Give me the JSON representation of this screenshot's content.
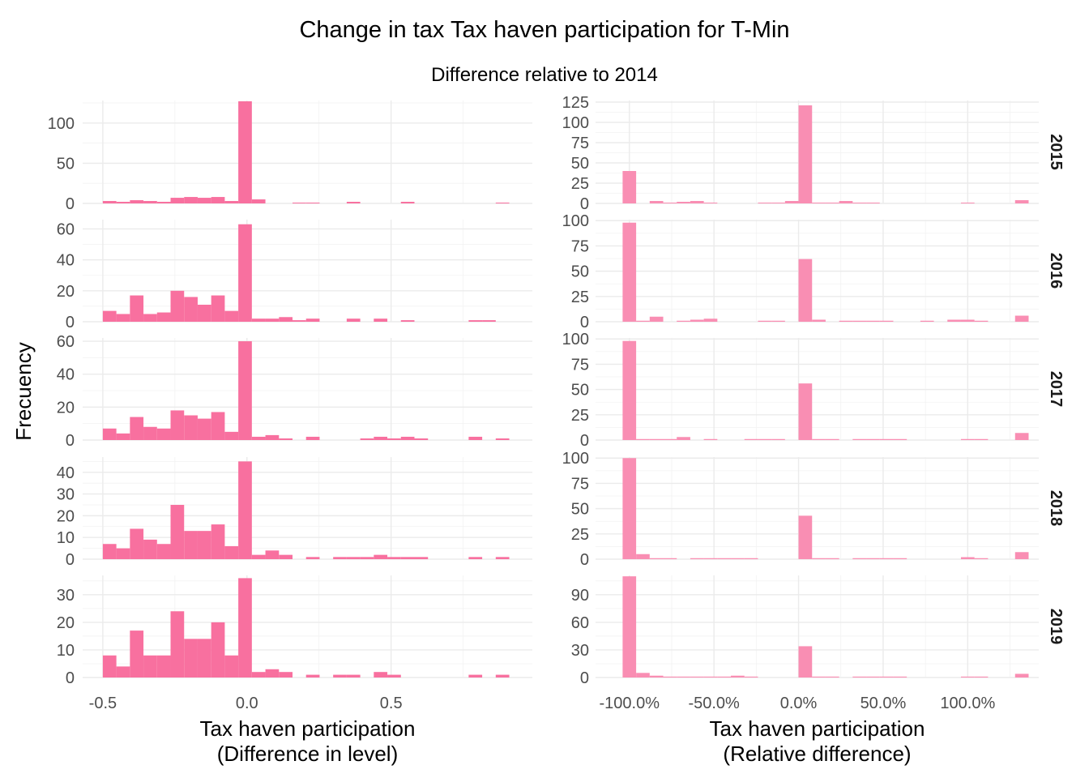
{
  "chart_data": {
    "type": "bar",
    "title": "Change in tax Tax haven participation for T-Min",
    "subtitle": "Difference relative to 2014",
    "ylabel": "Frecuency",
    "colors": {
      "level": "#f8709f",
      "relative": "#f98eb3"
    },
    "rows": [
      "2015",
      "2016",
      "2017",
      "2018",
      "2019"
    ],
    "columns": [
      {
        "key": "level",
        "xlabel_line1": "Tax haven participation",
        "xlabel_line2": "(Difference in level)",
        "xlim": [
          -0.57,
          0.99
        ],
        "x_ticks": [
          -0.5,
          0.0,
          0.5
        ],
        "x_tick_labels": [
          "-0.5",
          "0.0",
          "0.5"
        ],
        "bin_start": -0.5,
        "bin_width": 0.047,
        "panels": [
          {
            "year": "2015",
            "ylim": [
              0,
              128
            ],
            "y_ticks": [
              0,
              50,
              100
            ],
            "y_tick_labels": [
              "0",
              "50",
              "100"
            ],
            "values": [
              3,
              2,
              4,
              3,
              2,
              7,
              8,
              7,
              8,
              3,
              127,
              5,
              0,
              0,
              1,
              1,
              0,
              0,
              2,
              0,
              0,
              0,
              2,
              0,
              0,
              0,
              0,
              0,
              0,
              1
            ]
          },
          {
            "year": "2016",
            "ylim": [
              0,
              66
            ],
            "y_ticks": [
              0,
              20,
              40,
              60
            ],
            "y_tick_labels": [
              "0",
              "20",
              "40",
              "60"
            ],
            "values": [
              7,
              5,
              17,
              5,
              6,
              20,
              16,
              11,
              17,
              7,
              63,
              2,
              2,
              3,
              1,
              2,
              0,
              0,
              2,
              0,
              2,
              0,
              1,
              0,
              0,
              0,
              0,
              1,
              1,
              0
            ]
          },
          {
            "year": "2017",
            "ylim": [
              0,
              62
            ],
            "y_ticks": [
              0,
              20,
              40,
              60
            ],
            "y_tick_labels": [
              "0",
              "20",
              "40",
              "60"
            ],
            "values": [
              7,
              4,
              14,
              8,
              7,
              18,
              15,
              13,
              17,
              5,
              60,
              2,
              3,
              1,
              0,
              2,
              0,
              0,
              0,
              1,
              2,
              1,
              2,
              1,
              0,
              0,
              0,
              2,
              0,
              1
            ]
          },
          {
            "year": "2018",
            "ylim": [
              0,
              47
            ],
            "y_ticks": [
              0,
              10,
              20,
              30,
              40
            ],
            "y_tick_labels": [
              "0",
              "10",
              "20",
              "30",
              "40"
            ],
            "values": [
              7,
              5,
              14,
              9,
              7,
              25,
              13,
              13,
              16,
              6,
              45,
              2,
              4,
              2,
              0,
              1,
              0,
              1,
              1,
              1,
              2,
              1,
              1,
              1,
              0,
              0,
              0,
              1,
              0,
              1
            ]
          },
          {
            "year": "2019",
            "ylim": [
              0,
              37
            ],
            "y_ticks": [
              0,
              10,
              20,
              30
            ],
            "y_tick_labels": [
              "0",
              "10",
              "20",
              "30"
            ],
            "values": [
              8,
              4,
              17,
              8,
              8,
              24,
              14,
              14,
              20,
              8,
              36,
              2,
              3,
              2,
              0,
              1,
              0,
              1,
              1,
              0,
              2,
              1,
              0,
              0,
              0,
              0,
              0,
              1,
              0,
              1
            ]
          }
        ]
      },
      {
        "key": "relative",
        "xlabel_line1": "Tax haven participation",
        "xlabel_line2": "(Relative difference)",
        "xlim": [
          -1.2,
          1.42
        ],
        "x_ticks": [
          -1.0,
          -0.5,
          0.0,
          0.5,
          1.0
        ],
        "x_tick_labels": [
          "-100.0%",
          "-50.0%",
          "0.0%",
          "50.0%",
          "100.0%"
        ],
        "bin_start": -1.04,
        "bin_width": 0.08,
        "panels": [
          {
            "year": "2015",
            "ylim": [
              0,
              127
            ],
            "y_ticks": [
              0,
              25,
              50,
              75,
              100,
              125
            ],
            "y_tick_labels": [
              "0",
              "25",
              "50",
              "75",
              "100",
              "125"
            ],
            "values": [
              40,
              0,
              3,
              1,
              2,
              3,
              1,
              0,
              0,
              0,
              1,
              1,
              3,
              121,
              1,
              1,
              3,
              1,
              1,
              0,
              0,
              0,
              0,
              0,
              0,
              1,
              0,
              0,
              0,
              4
            ]
          },
          {
            "year": "2016",
            "ylim": [
              0,
              101
            ],
            "y_ticks": [
              0,
              25,
              50,
              75,
              100
            ],
            "y_tick_labels": [
              "0",
              "25",
              "50",
              "75",
              "100"
            ],
            "values": [
              98,
              1,
              5,
              0,
              1,
              2,
              3,
              0,
              0,
              0,
              1,
              1,
              0,
              62,
              2,
              0,
              1,
              1,
              1,
              1,
              0,
              0,
              1,
              0,
              2,
              2,
              1,
              0,
              0,
              6
            ]
          },
          {
            "year": "2017",
            "ylim": [
              0,
              101
            ],
            "y_ticks": [
              0,
              25,
              50,
              75,
              100
            ],
            "y_tick_labels": [
              "0",
              "25",
              "50",
              "75",
              "100"
            ],
            "values": [
              98,
              1,
              1,
              1,
              3,
              0,
              1,
              0,
              0,
              1,
              1,
              1,
              0,
              56,
              1,
              1,
              0,
              1,
              1,
              1,
              1,
              0,
              0,
              0,
              0,
              1,
              1,
              0,
              0,
              7
            ]
          },
          {
            "year": "2018",
            "ylim": [
              0,
              101
            ],
            "y_ticks": [
              0,
              25,
              50,
              75,
              100
            ],
            "y_tick_labels": [
              "0",
              "25",
              "50",
              "75",
              "100"
            ],
            "values": [
              100,
              5,
              1,
              1,
              0,
              1,
              1,
              1,
              1,
              1,
              0,
              0,
              0,
              43,
              1,
              1,
              0,
              1,
              1,
              1,
              1,
              0,
              0,
              0,
              0,
              2,
              1,
              0,
              0,
              7
            ]
          },
          {
            "year": "2019",
            "ylim": [
              0,
              111
            ],
            "y_ticks": [
              0,
              30,
              60,
              90
            ],
            "y_tick_labels": [
              "0",
              "30",
              "60",
              "90"
            ],
            "values": [
              110,
              5,
              2,
              1,
              1,
              1,
              1,
              1,
              2,
              1,
              0,
              0,
              0,
              34,
              1,
              1,
              0,
              1,
              1,
              1,
              1,
              0,
              0,
              0,
              0,
              1,
              1,
              0,
              0,
              4
            ]
          }
        ]
      }
    ]
  }
}
